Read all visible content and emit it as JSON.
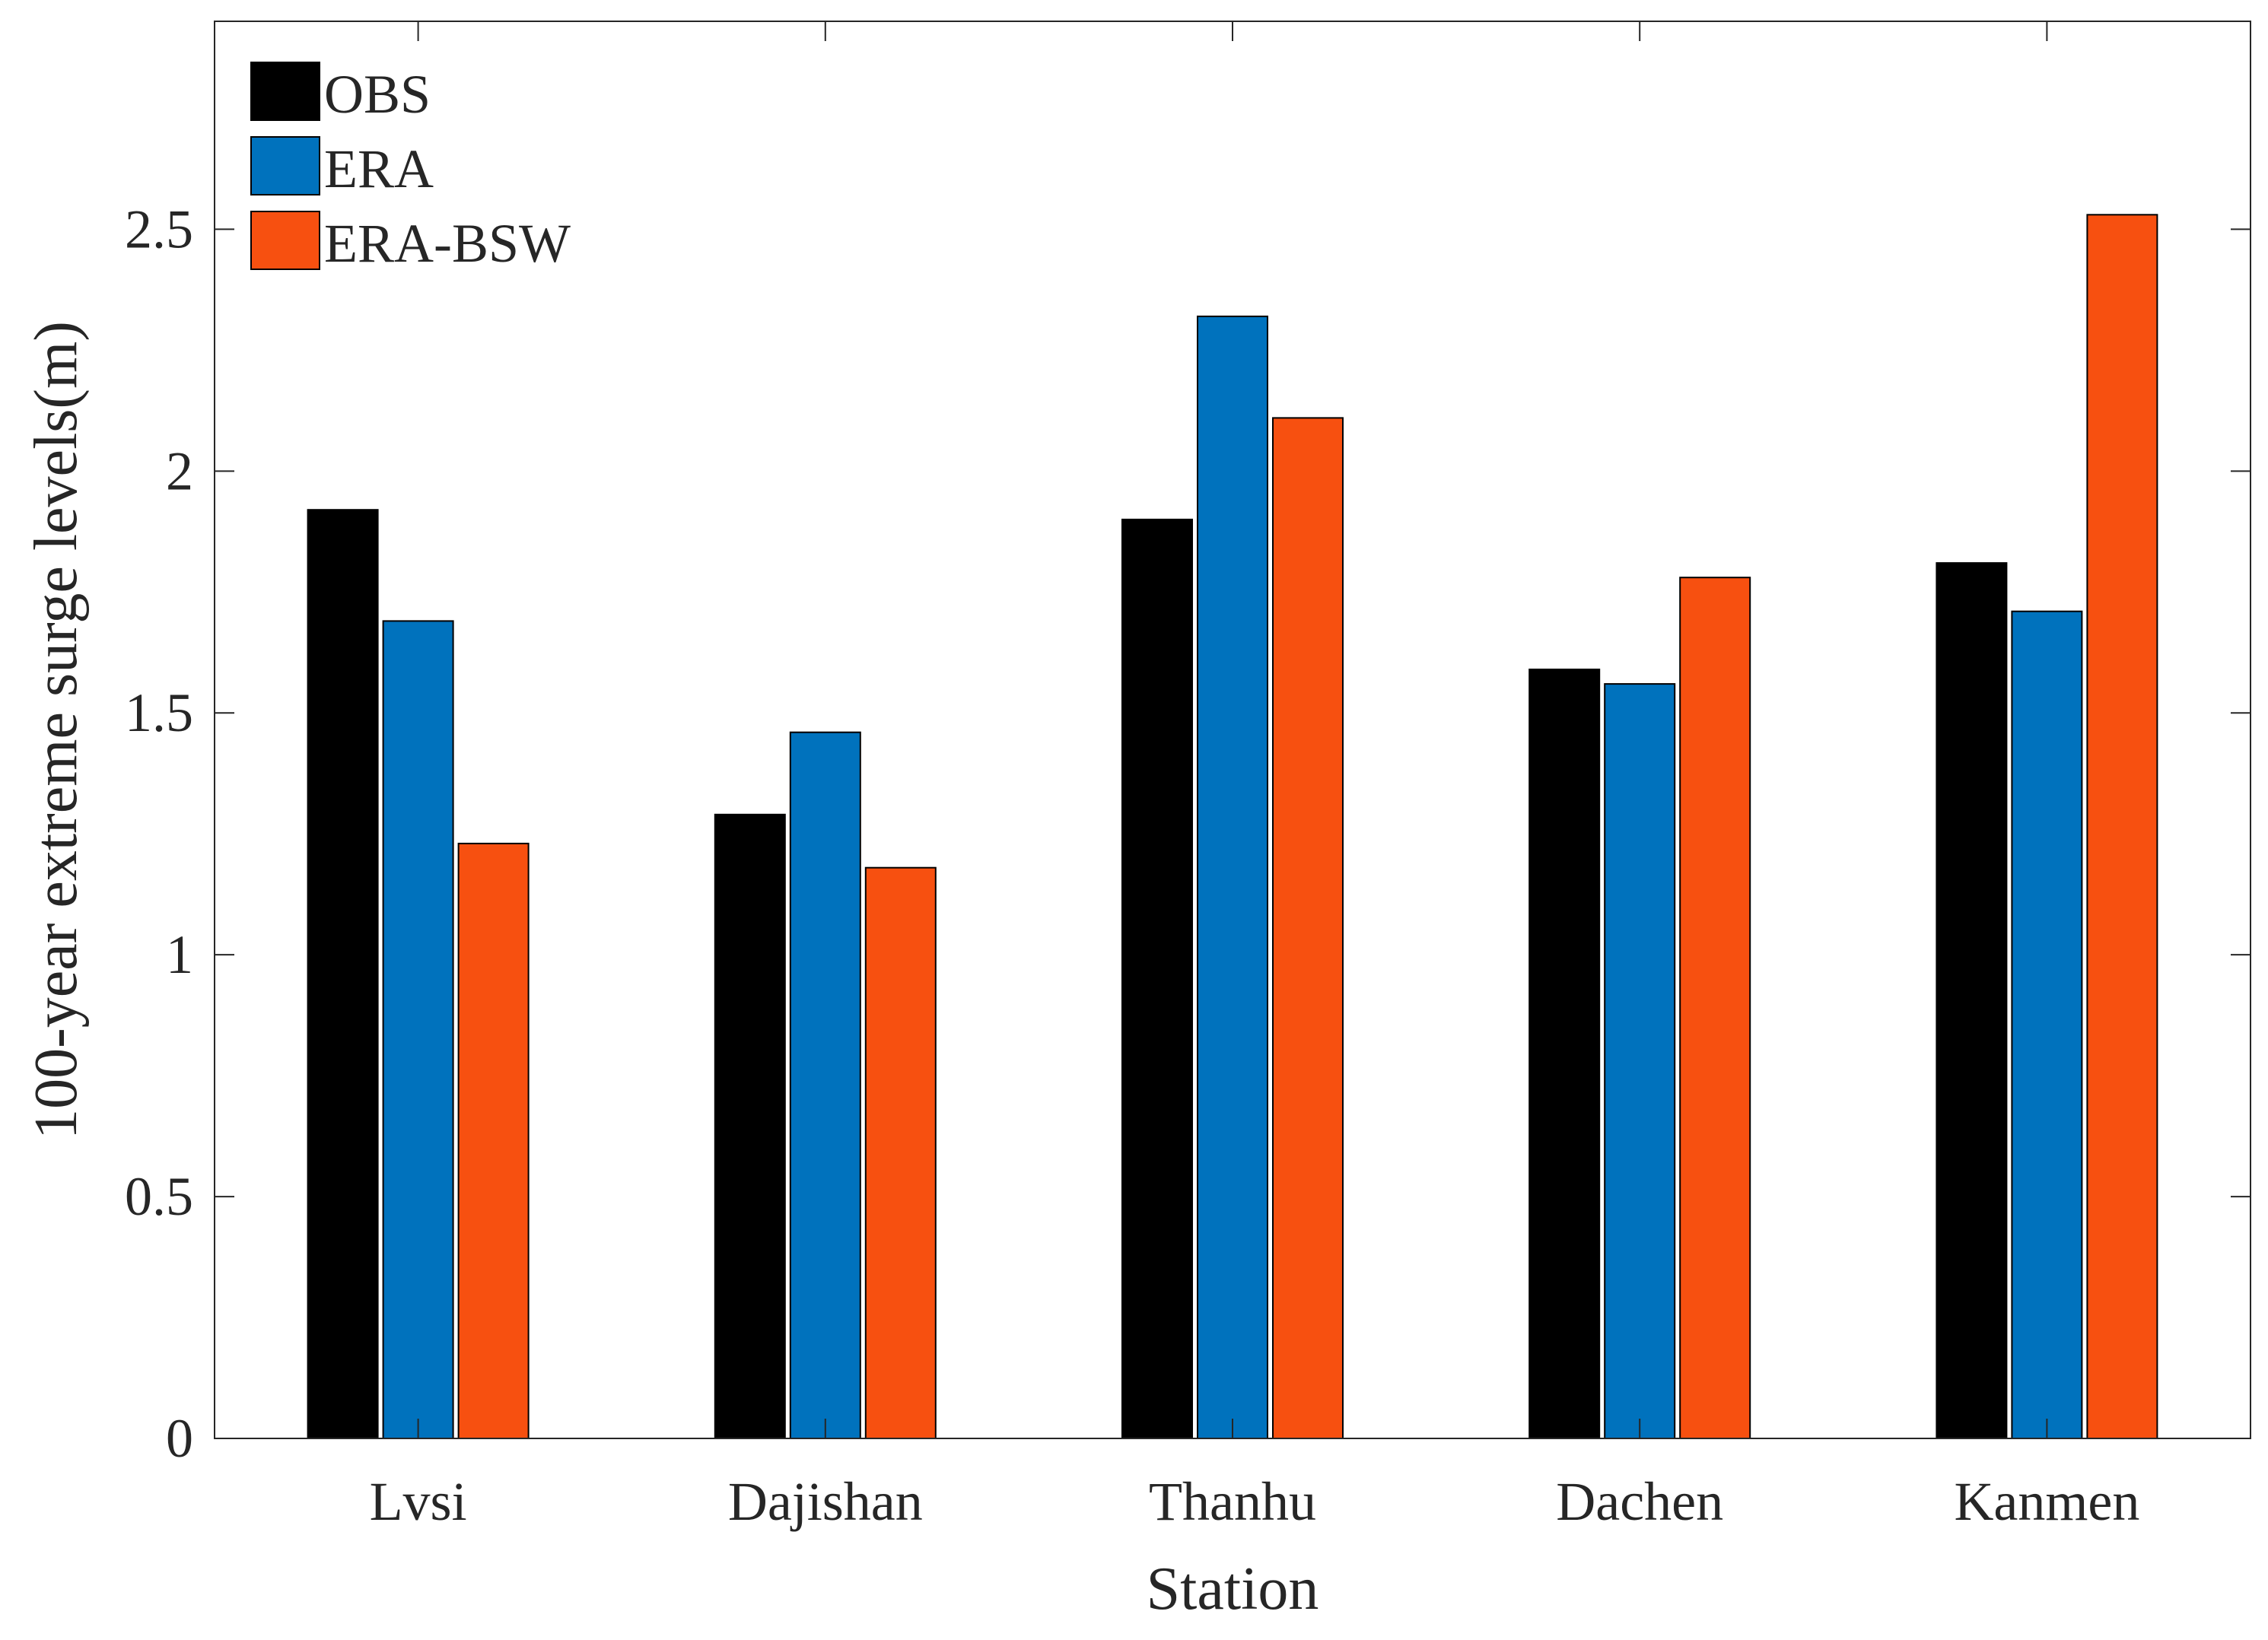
{
  "chart_data": {
    "type": "bar",
    "title": "",
    "xlabel": "Station",
    "ylabel": "100-year extreme surge levels(m)",
    "categories": [
      "Lvsi",
      "Dajishan",
      "Thanhu",
      "Dachen",
      "Kanmen"
    ],
    "series": [
      {
        "name": "OBS",
        "color": "#000000",
        "values": [
          1.92,
          1.29,
          1.9,
          1.59,
          1.81
        ]
      },
      {
        "name": "ERA",
        "color": "#0072BD",
        "values": [
          1.69,
          1.46,
          2.32,
          1.56,
          1.71
        ]
      },
      {
        "name": "ERA-BSW",
        "color": "#F75010",
        "values": [
          1.23,
          1.18,
          2.11,
          1.78,
          2.53
        ]
      }
    ],
    "xlim": [
      0.5,
      5.5
    ],
    "ylim": [
      0,
      2.93
    ],
    "yticks": [
      0,
      0.5,
      1,
      1.5,
      2,
      2.5
    ],
    "ytick_labels": [
      "0",
      "0.5",
      "1",
      "1.5",
      "2",
      "2.5"
    ],
    "grid": false,
    "legend_position": "top-left"
  }
}
